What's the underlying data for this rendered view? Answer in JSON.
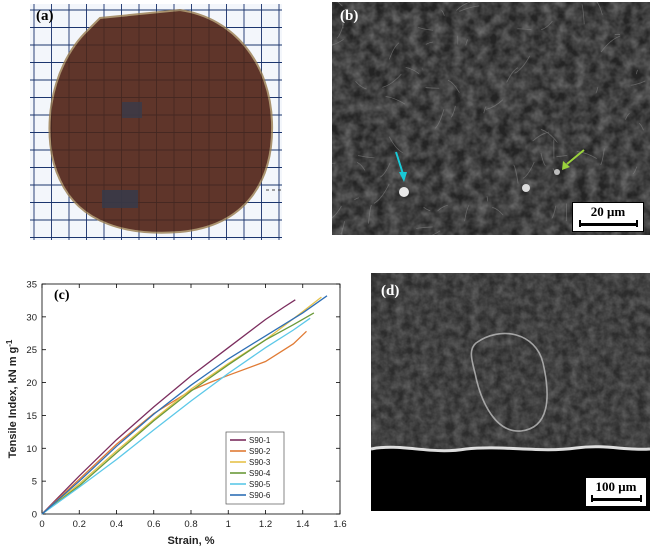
{
  "panels": {
    "a": {
      "label": "(a)"
    },
    "b": {
      "label": "(b)",
      "scale_bar": "20 μm"
    },
    "c": {
      "label": "(c)"
    },
    "d": {
      "label": "(d)",
      "scale_bar": "100 μm"
    }
  },
  "colors": {
    "membrane": "#5a2e22",
    "grid": "#1c3f8c",
    "sem_bg": "#242424",
    "arrow_cyan": "#19c9d6",
    "arrow_green": "#9ad23c"
  },
  "chart_data": {
    "type": "line",
    "xlabel": "Strain, %",
    "ylabel": "Tensile Index, kN m g",
    "ylabel_superscript": "-1",
    "xlim": [
      0,
      1.6
    ],
    "ylim": [
      0,
      35
    ],
    "xticks": [
      0,
      0.2,
      0.4,
      0.6,
      0.8,
      1,
      1.2,
      1.4,
      1.6
    ],
    "xtick_labels": [
      "0",
      "0.2",
      "0.4",
      "0.6",
      "0.8",
      "1",
      "1.2",
      "1.4",
      "1.6"
    ],
    "yticks": [
      0,
      5,
      10,
      15,
      20,
      25,
      30,
      35
    ],
    "ytick_labels": [
      "0",
      "5",
      "10",
      "15",
      "20",
      "25",
      "30",
      "35"
    ],
    "legend_position": "bottom-right",
    "series": [
      {
        "name": "S90-1",
        "color": "#7b2d5e",
        "x": [
          0,
          0.2,
          0.4,
          0.6,
          0.8,
          1.0,
          1.2,
          1.3,
          1.36
        ],
        "y": [
          0,
          5.8,
          11.3,
          16.3,
          21.0,
          25.3,
          29.6,
          31.5,
          32.6
        ]
      },
      {
        "name": "S90-2",
        "color": "#e07b35",
        "x": [
          0,
          0.2,
          0.4,
          0.6,
          0.8,
          0.9,
          1.0,
          1.2,
          1.35,
          1.42
        ],
        "y": [
          0,
          5.3,
          10.6,
          15.3,
          18.8,
          20.0,
          21.1,
          23.2,
          25.9,
          27.8
        ]
      },
      {
        "name": "S90-3",
        "color": "#e6c24a",
        "x": [
          0,
          0.2,
          0.4,
          0.6,
          0.8,
          1.0,
          1.2,
          1.4,
          1.5
        ],
        "y": [
          0,
          4.6,
          9.6,
          14.4,
          19.0,
          22.9,
          26.5,
          30.8,
          33.0
        ]
      },
      {
        "name": "S90-4",
        "color": "#6b9a3a",
        "x": [
          0,
          0.2,
          0.4,
          0.6,
          0.8,
          1.0,
          1.2,
          1.35,
          1.46
        ],
        "y": [
          0,
          4.3,
          9.3,
          14.2,
          18.7,
          22.7,
          26.5,
          28.8,
          30.6
        ]
      },
      {
        "name": "S90-5",
        "color": "#5cc8e8",
        "x": [
          0,
          0.2,
          0.4,
          0.6,
          0.8,
          1.0,
          1.2,
          1.35,
          1.44
        ],
        "y": [
          0,
          4.1,
          8.3,
          12.8,
          17.2,
          21.4,
          25.3,
          28.0,
          29.8
        ]
      },
      {
        "name": "S90-6",
        "color": "#2f6fb5",
        "x": [
          0,
          0.2,
          0.4,
          0.6,
          0.8,
          1.0,
          1.2,
          1.4,
          1.53
        ],
        "y": [
          0,
          5.0,
          10.3,
          15.2,
          19.6,
          23.6,
          27.1,
          30.6,
          33.2
        ]
      }
    ]
  }
}
